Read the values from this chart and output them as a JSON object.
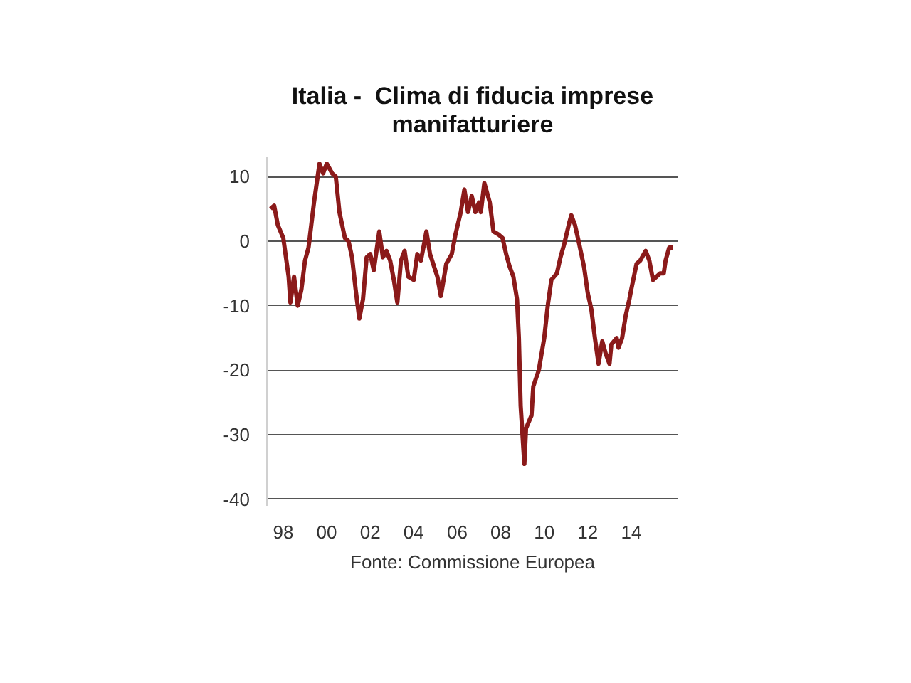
{
  "chart_data": {
    "type": "line",
    "title": "Italia -  Clima di fiducia imprese\nmanifatturiere",
    "annotations": [
      "Fonte: Commissione Europea"
    ],
    "x": [
      "1997-06",
      "1997-08",
      "1997-10",
      "1998-01",
      "1998-04",
      "1998-05",
      "1998-07",
      "1998-09",
      "1998-11",
      "1999-01",
      "1999-03",
      "1999-06",
      "1999-09",
      "1999-11",
      "2000-01",
      "2000-02",
      "2000-04",
      "2000-06",
      "2000-08",
      "2000-11",
      "2001-01",
      "2001-03",
      "2001-05",
      "2001-07",
      "2001-09",
      "2001-11",
      "2002-01",
      "2002-03",
      "2002-06",
      "2002-08",
      "2002-10",
      "2002-12",
      "2003-02",
      "2003-04",
      "2003-06",
      "2003-08",
      "2003-10",
      "2004-01",
      "2004-03",
      "2004-05",
      "2004-08",
      "2004-10",
      "2005-02",
      "2005-04",
      "2005-07",
      "2005-10",
      "2005-12",
      "2006-03",
      "2006-05",
      "2006-07",
      "2006-09",
      "2006-11",
      "2007-01",
      "2007-02",
      "2007-04",
      "2007-07",
      "2007-09",
      "2007-12",
      "2008-02",
      "2008-04",
      "2008-06",
      "2008-08",
      "2008-10",
      "2008-11",
      "2008-12",
      "2009-02",
      "2009-03",
      "2009-06",
      "2009-07",
      "2009-10",
      "2010-01",
      "2010-03",
      "2010-05",
      "2010-08",
      "2010-10",
      "2010-12",
      "2011-03",
      "2011-04",
      "2011-06",
      "2011-08",
      "2011-11",
      "2012-01",
      "2012-03",
      "2012-05",
      "2012-07",
      "2012-09",
      "2012-11",
      "2013-01",
      "2013-02",
      "2013-05",
      "2013-06",
      "2013-08",
      "2013-10",
      "2013-12",
      "2014-01",
      "2014-04",
      "2014-06",
      "2014-09",
      "2014-11",
      "2015-01",
      "2015-05",
      "2015-07",
      "2015-08",
      "2015-10",
      "2015-12"
    ],
    "series": [
      {
        "color": "#8b1a1a",
        "values": [
          5,
          5.5,
          2.5,
          0.5,
          -5.5,
          -9.5,
          -5.5,
          -10,
          -7.5,
          -3,
          -1,
          6,
          12,
          10.5,
          12,
          11.5,
          10.5,
          10,
          4.5,
          0.5,
          0,
          -2.5,
          -7.5,
          -12,
          -9,
          -2.5,
          -2,
          -4.5,
          1.5,
          -2.5,
          -1.5,
          -3,
          -6,
          -9.5,
          -3,
          -1.5,
          -5.5,
          -6,
          -2,
          -3,
          1.5,
          -2,
          -5.5,
          -8.5,
          -3.5,
          -2,
          1,
          4.5,
          8,
          4.5,
          7,
          4.5,
          6,
          4.5,
          9,
          6,
          1.5,
          1,
          0.5,
          -2,
          -4,
          -5.5,
          -9,
          -15,
          -25.5,
          -34.5,
          -29,
          -27,
          -22.5,
          -20,
          -15,
          -10,
          -6,
          -5,
          -2.5,
          -0.5,
          3,
          4,
          2.5,
          0,
          -4,
          -8,
          -10.5,
          -15,
          -19,
          -15.5,
          -17.5,
          -19,
          -16,
          -15,
          -16.5,
          -15,
          -11.5,
          -9,
          -7.5,
          -3.5,
          -3,
          -1.5,
          -3,
          -6,
          -5,
          -5,
          -3,
          -1,
          -1
        ]
      }
    ],
    "xlim": [
      "1997-04",
      "2016-03"
    ],
    "xticks": [
      {
        "value": "1998",
        "label": "98"
      },
      {
        "value": "2000",
        "label": "00"
      },
      {
        "value": "2002",
        "label": "02"
      },
      {
        "value": "2004",
        "label": "04"
      },
      {
        "value": "2006",
        "label": "06"
      },
      {
        "value": "2008",
        "label": "08"
      },
      {
        "value": "2010",
        "label": "10"
      },
      {
        "value": "2012",
        "label": "12"
      },
      {
        "value": "2014",
        "label": "14"
      }
    ],
    "ylim": [
      -41,
      13
    ],
    "yticks": [
      -40,
      -30,
      -20,
      -10,
      0,
      10
    ],
    "grid": "y",
    "line_style": "solid"
  }
}
